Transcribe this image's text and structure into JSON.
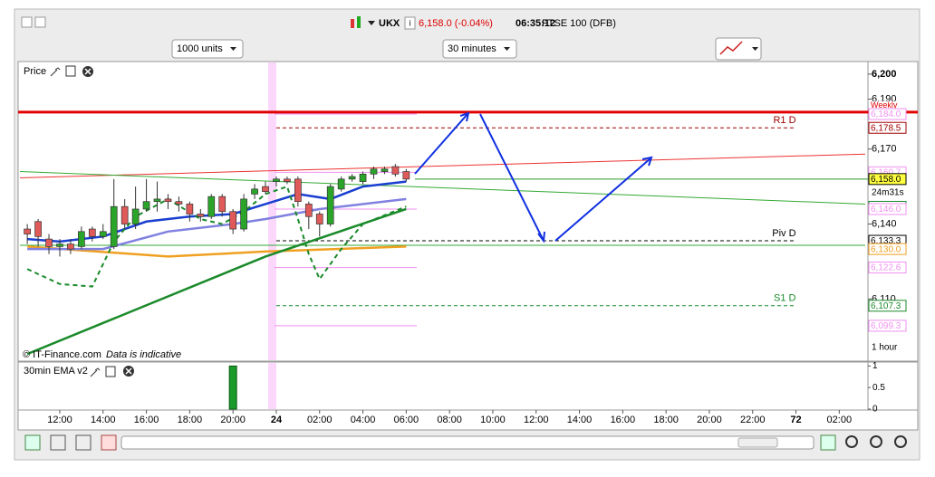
{
  "header": {
    "symbol": "UKX",
    "quote": "6,158.0 (-0.04%)",
    "time": "06:35:12",
    "instrument": "FTSE 100 (DFB)"
  },
  "toolbar": {
    "size": "1000 units",
    "interval": "30 minutes"
  },
  "chart_data": [
    {
      "type": "candlestick",
      "title": "Price",
      "credit": "© IT-Finance.com",
      "note": "Data is indicative",
      "countdown": "24m31s",
      "timeframe": "1 hour",
      "xlim": [
        0.32,
        78.4
      ],
      "xticks": [
        {
          "value": 4,
          "label": "12:00"
        },
        {
          "value": 8,
          "label": "14:00"
        },
        {
          "value": 12,
          "label": "16:00"
        },
        {
          "value": 16,
          "label": "18:00"
        },
        {
          "value": 20,
          "label": "20:00"
        },
        24,
        {
          "value": 28,
          "label": "02:00"
        },
        {
          "value": 32,
          "label": "04:00"
        },
        {
          "value": 36,
          "label": "06:00"
        },
        {
          "value": 40,
          "label": "08:00"
        },
        {
          "value": 44,
          "label": "10:00"
        },
        {
          "value": 48,
          "label": "12:00"
        },
        {
          "value": 52,
          "label": "14:00"
        },
        {
          "value": 56,
          "label": "16:00"
        },
        {
          "value": 60,
          "label": "18:00"
        },
        {
          "value": 64,
          "label": "20:00"
        },
        {
          "value": 68,
          "label": "22:00"
        },
        72,
        {
          "value": 76,
          "label": "02:00"
        }
      ],
      "ylim": [
        6085.5,
        6204.3
      ],
      "yticks": [
        {
          "value": 6200,
          "label": "6,200"
        },
        {
          "value": 6190,
          "label": "6,190"
        },
        {
          "value": 6170,
          "label": "6,170"
        },
        {
          "value": 6140,
          "label": "6,140"
        },
        {
          "value": 6110,
          "label": "6,110"
        }
      ],
      "candles": {
        "x": [
          1,
          2,
          3,
          4,
          5,
          6,
          7,
          8,
          9,
          10,
          11,
          12,
          13,
          14,
          15,
          16,
          17,
          18,
          19,
          20,
          21,
          22,
          23,
          24,
          25,
          26,
          27,
          28,
          29,
          30,
          31,
          32,
          33,
          34,
          35,
          36
        ],
        "open": [
          6138,
          6141,
          6134,
          6131,
          6132,
          6131,
          6138,
          6135,
          6131,
          6147,
          6140,
          6146,
          6149,
          6150,
          6149,
          6148,
          6144,
          6143,
          6151,
          6145,
          6138,
          6152,
          6155,
          6157,
          6158,
          6158,
          6148,
          6144,
          6140,
          6154,
          6158,
          6157,
          6160,
          6161,
          6163,
          6161
        ],
        "high": [
          6140,
          6142,
          6136,
          6134,
          6134,
          6139,
          6139,
          6140,
          6158,
          6150,
          6155,
          6158,
          6157,
          6152,
          6151,
          6149,
          6146,
          6152,
          6152,
          6146,
          6152,
          6156,
          6157,
          6159,
          6159,
          6159,
          6149,
          6145,
          6156,
          6159,
          6160,
          6161,
          6163,
          6163,
          6164,
          6162
        ],
        "low": [
          6132,
          6131,
          6128,
          6127,
          6128,
          6130,
          6133,
          6134,
          6130,
          6138,
          6138,
          6145,
          6145,
          6146,
          6145,
          6141,
          6141,
          6142,
          6143,
          6136,
          6137,
          6150,
          6152,
          6155,
          6156,
          6147,
          6138,
          6135,
          6139,
          6153,
          6157,
          6156,
          6158,
          6160,
          6159,
          6157
        ],
        "close": [
          6136,
          6135,
          6131,
          6132,
          6130,
          6137,
          6135,
          6137,
          6147,
          6140,
          6146,
          6149,
          6150,
          6149,
          6148,
          6144,
          6143,
          6151,
          6145,
          6138,
          6150,
          6154,
          6153,
          6158,
          6157,
          6149,
          6143,
          6140,
          6155,
          6158,
          6159,
          6160,
          6162,
          6162,
          6160,
          6158
        ]
      },
      "up_color": "#2aa52a",
      "down_color": "#e05a5a",
      "lines": [
        {
          "color": "#e33",
          "width": 1,
          "x": [
            0.32,
            78.4
          ],
          "values": [
            6158.5,
            6168
          ]
        },
        {
          "color": "#3a3",
          "width": 1,
          "x": [
            0.32,
            78.4
          ],
          "values": [
            6161,
            6148
          ]
        },
        {
          "color": "#3a3",
          "width": 1,
          "x": [
            0.32,
            78.4
          ],
          "values": [
            6131.5,
            6131.5
          ]
        },
        {
          "color": "#f0a020",
          "width": 2.5,
          "x": [
            1,
            14,
            23,
            36
          ],
          "values": [
            6131,
            6127,
            6129,
            6131
          ]
        },
        {
          "color": "#8080e0",
          "width": 2.5,
          "x": [
            1,
            8,
            14,
            20,
            23,
            28,
            36
          ],
          "values": [
            6130,
            6130,
            6137,
            6140,
            6142,
            6146,
            6150
          ]
        },
        {
          "color": "#1a3fd0",
          "width": 2.5,
          "x": [
            1,
            4,
            8,
            12,
            16,
            20,
            23,
            26,
            29,
            32,
            36
          ],
          "values": [
            6134,
            6133,
            6135,
            6141,
            6143,
            6144,
            6148,
            6152,
            6150,
            6155,
            6157
          ]
        },
        {
          "color": "#1a8a2a",
          "width": 2.5,
          "x": [
            1,
            23,
            36
          ],
          "values": [
            6088,
            6127,
            6146
          ]
        },
        {
          "color": "#1a8a2a",
          "width": 2,
          "dash": true,
          "x": [
            1,
            4,
            7,
            9,
            11,
            14,
            17,
            19,
            21,
            23,
            25,
            26,
            27,
            28,
            30,
            32,
            36
          ],
          "values": [
            6122,
            6116,
            6115,
            6133,
            6143,
            6150,
            6142,
            6140,
            6145,
            6152,
            6155,
            6142,
            6128,
            6118,
            6130,
            6140,
            6147
          ]
        }
      ],
      "weekly": {
        "name": "Weekly",
        "value": 6184.8,
        "color": "#e00000"
      },
      "levels": [
        {
          "name": "R1 D",
          "value": 6178.5,
          "color": "#a00000",
          "from": 24,
          "to": 72
        },
        {
          "name": "Piv D",
          "value": 6133.3,
          "color": "#000000",
          "from": 24,
          "to": 72
        },
        {
          "name": "S1 D",
          "value": 6107.3,
          "color": "#1a8a2a",
          "from": 24,
          "to": 72
        }
      ],
      "tags": [
        {
          "value": 6184.0,
          "label": "6,184.0",
          "color": "#f090f0"
        },
        {
          "value": 6178.5,
          "label": "6,178.5",
          "color": "#a00000"
        },
        {
          "value": 6160.7,
          "label": "6,160.7",
          "color": "#f090f0"
        },
        {
          "value": 6146.9,
          "label": "6,146.9",
          "color": "#1a8a2a"
        },
        {
          "value": 6146.0,
          "label": "6,146.0",
          "color": "#f090f0"
        },
        {
          "value": 6133.3,
          "label": "6,133.3",
          "color": "#000000"
        },
        {
          "value": 6130.0,
          "label": "6,130.0",
          "color": "#f0a020"
        },
        {
          "value": 6122.6,
          "label": "6,122.6",
          "color": "#f090f0"
        },
        {
          "value": 6107.3,
          "label": "6,107.3",
          "color": "#1a8a2a"
        },
        {
          "value": 6099.3,
          "label": "6,099.3",
          "color": "#f090f0"
        },
        {
          "value": 6158.0,
          "label": "6,158.0",
          "color": "#000000"
        }
      ]
    },
    {
      "type": "bar",
      "title": "30min EMA v2",
      "x": [
        20
      ],
      "values": [
        1
      ],
      "color": "#1a9a2a",
      "ylim": [
        0,
        1.05
      ],
      "yticks": [
        1,
        0.5,
        0
      ]
    }
  ]
}
